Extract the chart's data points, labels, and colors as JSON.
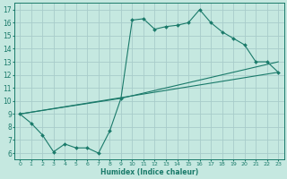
{
  "title": "",
  "xlabel": "Humidex (Indice chaleur)",
  "xlim": [
    -0.5,
    23.5
  ],
  "ylim": [
    5.5,
    17.5
  ],
  "xticks": [
    0,
    1,
    2,
    3,
    4,
    5,
    6,
    7,
    8,
    9,
    10,
    11,
    12,
    13,
    14,
    15,
    16,
    17,
    18,
    19,
    20,
    21,
    22,
    23
  ],
  "yticks": [
    6,
    7,
    8,
    9,
    10,
    11,
    12,
    13,
    14,
    15,
    16,
    17
  ],
  "bg_color": "#c5e8e0",
  "line_color": "#1a7a6a",
  "grid_color": "#a8ccca",
  "line_main": {
    "x": [
      0,
      1,
      2,
      3,
      4,
      5,
      6,
      7,
      8,
      9,
      10,
      11,
      12,
      13,
      14,
      15,
      16,
      17,
      18,
      19,
      20,
      21,
      22,
      23
    ],
    "y": [
      9.0,
      8.3,
      7.4,
      6.1,
      6.7,
      6.4,
      6.4,
      6.0,
      7.7,
      10.2,
      16.2,
      16.3,
      15.5,
      15.7,
      15.8,
      16.0,
      17.0,
      16.0,
      15.3,
      14.8,
      14.3,
      13.0,
      13.0,
      12.2
    ]
  },
  "line_upper": {
    "x": [
      0,
      9,
      23
    ],
    "y": [
      9.0,
      10.2,
      13.0
    ]
  },
  "line_lower": {
    "x": [
      0,
      23
    ],
    "y": [
      9.0,
      12.2
    ]
  }
}
